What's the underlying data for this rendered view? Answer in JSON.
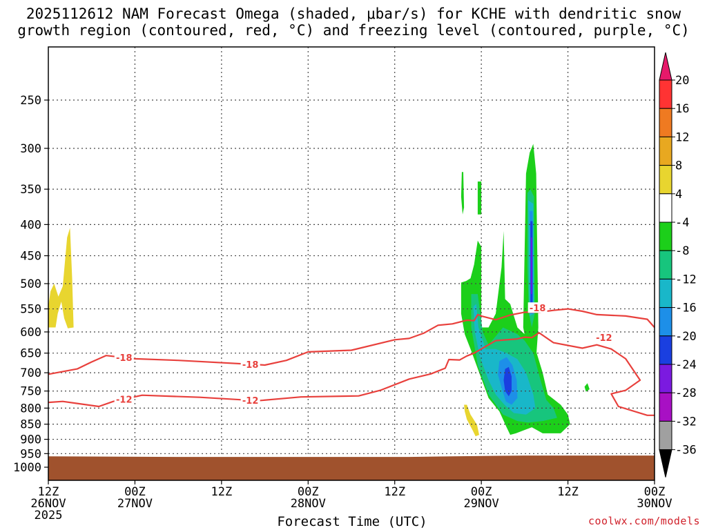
{
  "title_line1": "2025112612 NAM Forecast Omega (shaded, μbar/s) for KCHE with dendritic snow",
  "title_line2": "growth region (contoured, red, °C) and freezing level (contoured, purple, °C)",
  "xlabel": "Forecast Time (UTC)",
  "credit": "coolwx.com/models",
  "colors": {
    "contour_red": "#e8403c",
    "ground": "#a0522d",
    "grid": "#555555"
  },
  "chart_data": {
    "type": "heatmap",
    "y_axis": {
      "label": "",
      "scale": "log-pressure",
      "units": "hPa",
      "range": [
        1050,
        200
      ],
      "ticks": [
        250,
        300,
        350,
        400,
        450,
        500,
        550,
        600,
        650,
        700,
        750,
        800,
        850,
        900,
        950,
        1000
      ]
    },
    "x_axis": {
      "label": "Forecast Time (UTC)",
      "range_hours": [
        0,
        84
      ],
      "ticks": [
        {
          "hour": 0,
          "l1": "12Z",
          "l2": "26NOV",
          "l3": "2025"
        },
        {
          "hour": 12,
          "l1": "00Z",
          "l2": "27NOV",
          "l3": ""
        },
        {
          "hour": 24,
          "l1": "12Z",
          "l2": "",
          "l3": ""
        },
        {
          "hour": 36,
          "l1": "00Z",
          "l2": "28NOV",
          "l3": ""
        },
        {
          "hour": 48,
          "l1": "12Z",
          "l2": "",
          "l3": ""
        },
        {
          "hour": 60,
          "l1": "00Z",
          "l2": "29NOV",
          "l3": ""
        },
        {
          "hour": 72,
          "l1": "12Z",
          "l2": "",
          "l3": ""
        },
        {
          "hour": 84,
          "l1": "00Z",
          "l2": "30NOV",
          "l3": ""
        }
      ]
    },
    "colorbar": {
      "levels": [
        20,
        16,
        12,
        8,
        4,
        -4,
        -8,
        -12,
        -16,
        -20,
        -24,
        -28,
        -32,
        -36
      ],
      "colors": [
        "#e6196a",
        "#ff3333",
        "#ef7a21",
        "#e8a820",
        "#e8d52f",
        "#ffffff",
        "#1ccf1a",
        "#17c57d",
        "#19b7c9",
        "#1d8fe8",
        "#1a3fe0",
        "#7b1ae0",
        "#a810c4",
        "#a0a0a0",
        "#000000"
      ]
    },
    "contours": [
      {
        "label": "-18",
        "color": "#e8403c",
        "points": [
          [
            0,
            704
          ],
          [
            4,
            690
          ],
          [
            6,
            672
          ],
          [
            8,
            656
          ],
          [
            12,
            664
          ],
          [
            18,
            668
          ],
          [
            30,
            680
          ],
          [
            33,
            668
          ],
          [
            36,
            647
          ],
          [
            42,
            643
          ],
          [
            48,
            618
          ],
          [
            50,
            615
          ],
          [
            52,
            603
          ],
          [
            54,
            585
          ],
          [
            56,
            582
          ],
          [
            58,
            574
          ],
          [
            59,
            575
          ],
          [
            59.5,
            562
          ],
          [
            60,
            565
          ],
          [
            62,
            573
          ],
          [
            64,
            563
          ],
          [
            66,
            557
          ],
          [
            68,
            557
          ],
          [
            70,
            553
          ],
          [
            72,
            550
          ],
          [
            74,
            555
          ],
          [
            76,
            562
          ],
          [
            80,
            565
          ],
          [
            83,
            572
          ],
          [
            84,
            590
          ]
        ]
      },
      {
        "label": "-12",
        "color": "#e8403c",
        "points": [
          [
            0,
            783
          ],
          [
            2,
            780
          ],
          [
            4,
            786
          ],
          [
            7,
            795
          ],
          [
            9,
            780
          ],
          [
            13,
            762
          ],
          [
            21,
            768
          ],
          [
            29,
            778
          ],
          [
            35,
            767
          ],
          [
            43,
            764
          ],
          [
            46,
            748
          ],
          [
            50,
            717
          ],
          [
            53,
            703
          ],
          [
            55,
            688
          ],
          [
            55.5,
            666
          ],
          [
            57,
            667
          ],
          [
            58,
            657
          ],
          [
            59,
            650
          ],
          [
            60,
            640
          ],
          [
            62,
            620
          ],
          [
            65,
            616
          ],
          [
            66,
            612
          ],
          [
            67,
            613
          ],
          [
            68,
            602
          ],
          [
            70,
            625
          ],
          [
            74,
            638
          ],
          [
            76,
            630
          ],
          [
            78,
            640
          ],
          [
            80,
            664
          ],
          [
            82,
            720
          ],
          [
            80,
            748
          ],
          [
            78,
            758
          ],
          [
            79,
            795
          ],
          [
            83,
            822
          ],
          [
            84,
            822
          ]
        ]
      }
    ],
    "omega_regions": [
      {
        "value": -4,
        "color": "#1ccf1a",
        "area": "narrow tower near 29NOV 06Z",
        "range_hpa": [
          285,
          550
        ]
      },
      {
        "value": -4,
        "color": "#1ccf1a",
        "area": "broad region 28NOV 21Z–29NOV 12Z",
        "range_hpa": [
          430,
          860
        ]
      },
      {
        "value": -12,
        "color": "#19b7c9",
        "area": "core near 29NOV 03Z",
        "range_hpa": [
          560,
          820
        ]
      },
      {
        "value": -20,
        "color": "#1a3fe0",
        "area": "core near 29NOV 03Z",
        "range_hpa": [
          680,
          770
        ]
      },
      {
        "value": -20,
        "color": "#1a3fe0",
        "area": "tower near 29NOV 06Z",
        "range_hpa": [
          380,
          560
        ]
      },
      {
        "value": 4,
        "color": "#e8d52f",
        "area": "near 26NOV 14Z",
        "range_hpa": [
          410,
          590
        ]
      },
      {
        "value": 4,
        "color": "#e8d52f",
        "area": "near 28NOV 23Z",
        "range_hpa": [
          780,
          880
        ]
      }
    ],
    "ground": {
      "from_hpa": 960,
      "color": "#a0522d"
    }
  }
}
